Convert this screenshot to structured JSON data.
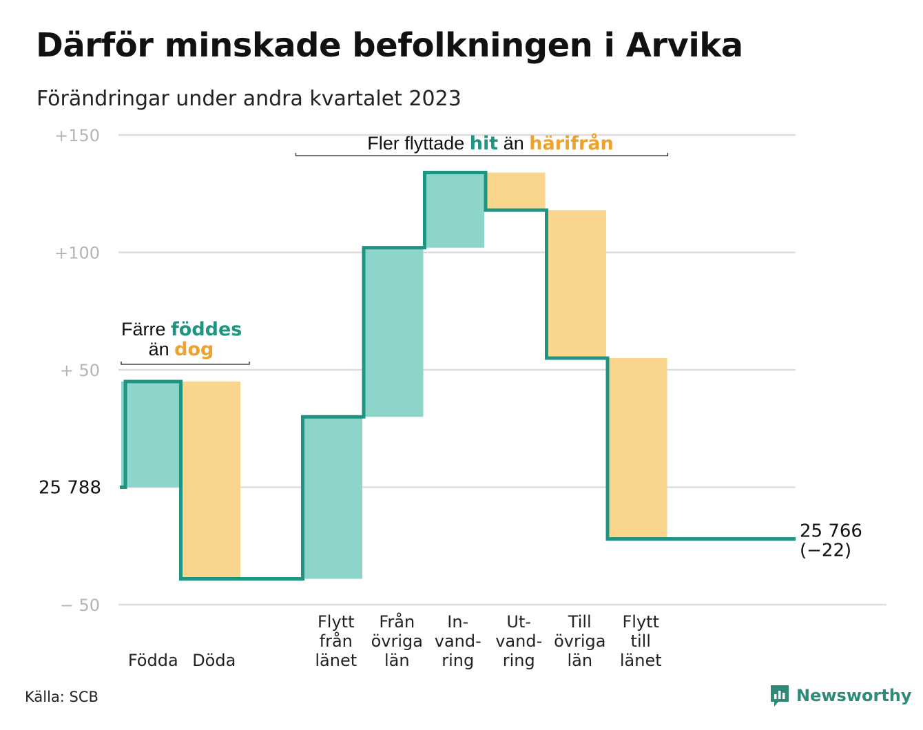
{
  "title": "Därför minskade befolkningen i Arvika",
  "subtitle": "Förändringar under andra kvartalet 2023",
  "source": "Källa: SCB",
  "logo": {
    "name": "Newsworthy",
    "icon": "bar-chart-speech-bubble-icon"
  },
  "colors": {
    "increase_fill": "#8dd5cb",
    "decrease_fill": "#f9d58e",
    "line": "#1d9582",
    "accent_teal": "#1d9582",
    "accent_orange": "#eea22e",
    "grid": "#dddddd",
    "tick_text": "#b5b5b5"
  },
  "annotations": {
    "births": {
      "pre": "Färre",
      "hit": "föddes",
      "line2_pre": "än",
      "away": "dog"
    },
    "moves": {
      "pre": "Fler flyttade",
      "hit": "hit",
      "mid": "än",
      "away": "härifrån"
    }
  },
  "chart_data": {
    "type": "waterfall",
    "title": "Därför minskade befolkningen i Arvika",
    "subtitle": "Förändringar under andra kvartalet 2023",
    "start_label": "25  788",
    "start_value": 25788,
    "end_label": "25 766",
    "end_change_label": "(−22)",
    "end_value": 25766,
    "change": -22,
    "yticks": [
      {
        "value": 150,
        "label": "+150"
      },
      {
        "value": 100,
        "label": "+100"
      },
      {
        "value": 50,
        "label": "+  50"
      },
      {
        "value": 0,
        "label": ""
      },
      {
        "value": -50,
        "label": "−  50"
      }
    ],
    "ylim": [
      -50,
      150
    ],
    "grid": true,
    "steps": [
      {
        "label": [
          "Födda"
        ],
        "value": 45,
        "kind": "increase"
      },
      {
        "label": [
          "Döda"
        ],
        "value": -84,
        "kind": "decrease"
      },
      {
        "label": [
          ""
        ],
        "value": 0,
        "kind": "gap"
      },
      {
        "label": [
          "Flytt",
          "från",
          "länet"
        ],
        "value": 69,
        "kind": "increase"
      },
      {
        "label": [
          "Från",
          "övriga",
          "län"
        ],
        "value": 72,
        "kind": "increase"
      },
      {
        "label": [
          "In-",
          "vand-",
          "ring"
        ],
        "value": 32,
        "kind": "increase"
      },
      {
        "label": [
          "Ut-",
          "vand-",
          "ring"
        ],
        "value": -16,
        "kind": "decrease"
      },
      {
        "label": [
          "Till",
          "övriga",
          "län"
        ],
        "value": -63,
        "kind": "decrease"
      },
      {
        "label": [
          "Flytt",
          "till",
          "länet"
        ],
        "value": -77,
        "kind": "decrease"
      }
    ]
  }
}
